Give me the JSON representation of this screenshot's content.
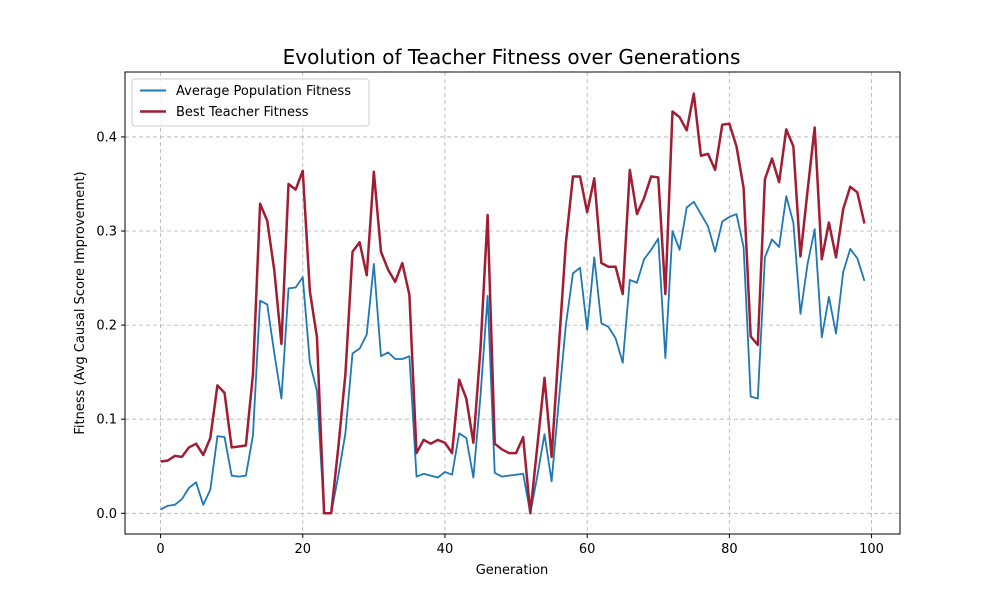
{
  "chart_data": {
    "type": "line",
    "title": "Evolution of Teacher Fitness over Generations",
    "xlabel": "Generation",
    "ylabel": "Fitness (Avg Causal Score Improvement)",
    "xlim": [
      -5,
      104
    ],
    "ylim": [
      -0.022,
      0.469
    ],
    "xticks": [
      0,
      20,
      40,
      60,
      80,
      100
    ],
    "yticks": [
      0.0,
      0.1,
      0.2,
      0.3,
      0.4
    ],
    "ytick_labels": [
      "0.0",
      "0.1",
      "0.2",
      "0.3",
      "0.4"
    ],
    "grid": true,
    "legend_position": "top-left",
    "x": [
      0,
      1,
      2,
      3,
      4,
      5,
      6,
      7,
      8,
      9,
      10,
      11,
      12,
      13,
      14,
      15,
      16,
      17,
      18,
      19,
      20,
      21,
      22,
      23,
      24,
      25,
      26,
      27,
      28,
      29,
      30,
      31,
      32,
      33,
      34,
      35,
      36,
      37,
      38,
      39,
      40,
      41,
      42,
      43,
      44,
      45,
      46,
      47,
      48,
      49,
      50,
      51,
      52,
      53,
      54,
      55,
      56,
      57,
      58,
      59,
      60,
      61,
      62,
      63,
      64,
      65,
      66,
      67,
      68,
      69,
      70,
      71,
      72,
      73,
      74,
      75,
      76,
      77,
      78,
      79,
      80,
      81,
      82,
      83,
      84,
      85,
      86,
      87,
      88,
      89,
      90,
      91,
      92,
      93,
      94,
      95,
      96,
      97,
      98,
      99
    ],
    "series": [
      {
        "name": "Average Population Fitness",
        "color": "#1f77b4",
        "values": [
          0.004,
          0.008,
          0.009,
          0.015,
          0.027,
          0.033,
          0.009,
          0.025,
          0.082,
          0.081,
          0.04,
          0.039,
          0.04,
          0.083,
          0.226,
          0.222,
          0.17,
          0.122,
          0.239,
          0.24,
          0.251,
          0.16,
          0.13,
          0.0,
          0.0,
          0.04,
          0.085,
          0.17,
          0.175,
          0.19,
          0.265,
          0.167,
          0.171,
          0.164,
          0.164,
          0.167,
          0.039,
          0.042,
          0.04,
          0.038,
          0.044,
          0.041,
          0.085,
          0.08,
          0.038,
          0.125,
          0.231,
          0.043,
          0.039,
          0.04,
          0.041,
          0.042,
          0.0,
          0.04,
          0.084,
          0.034,
          0.118,
          0.2,
          0.255,
          0.261,
          0.195,
          0.272,
          0.202,
          0.198,
          0.186,
          0.16,
          0.248,
          0.245,
          0.27,
          0.28,
          0.292,
          0.165,
          0.3,
          0.28,
          0.325,
          0.331,
          0.318,
          0.305,
          0.278,
          0.31,
          0.315,
          0.318,
          0.283,
          0.124,
          0.122,
          0.272,
          0.291,
          0.283,
          0.337,
          0.309,
          0.212,
          0.265,
          0.302,
          0.187,
          0.23,
          0.191,
          0.256,
          0.281,
          0.271,
          0.247
        ]
      },
      {
        "name": "Best Teacher Fitness",
        "color": "#a11d33",
        "values": [
          0.055,
          0.056,
          0.061,
          0.06,
          0.07,
          0.074,
          0.062,
          0.08,
          0.136,
          0.128,
          0.07,
          0.071,
          0.072,
          0.148,
          0.329,
          0.311,
          0.258,
          0.18,
          0.35,
          0.344,
          0.364,
          0.236,
          0.187,
          0.0,
          0.0,
          0.07,
          0.148,
          0.278,
          0.288,
          0.253,
          0.363,
          0.278,
          0.259,
          0.246,
          0.266,
          0.232,
          0.064,
          0.078,
          0.074,
          0.078,
          0.075,
          0.064,
          0.142,
          0.122,
          0.075,
          0.175,
          0.317,
          0.074,
          0.068,
          0.064,
          0.064,
          0.081,
          0.0,
          0.072,
          0.144,
          0.06,
          0.175,
          0.287,
          0.358,
          0.358,
          0.32,
          0.356,
          0.266,
          0.262,
          0.262,
          0.233,
          0.365,
          0.318,
          0.335,
          0.358,
          0.357,
          0.233,
          0.427,
          0.421,
          0.407,
          0.446,
          0.38,
          0.382,
          0.365,
          0.413,
          0.414,
          0.39,
          0.346,
          0.188,
          0.179,
          0.355,
          0.377,
          0.352,
          0.408,
          0.39,
          0.273,
          0.343,
          0.41,
          0.27,
          0.309,
          0.272,
          0.323,
          0.347,
          0.341,
          0.308
        ]
      }
    ]
  }
}
